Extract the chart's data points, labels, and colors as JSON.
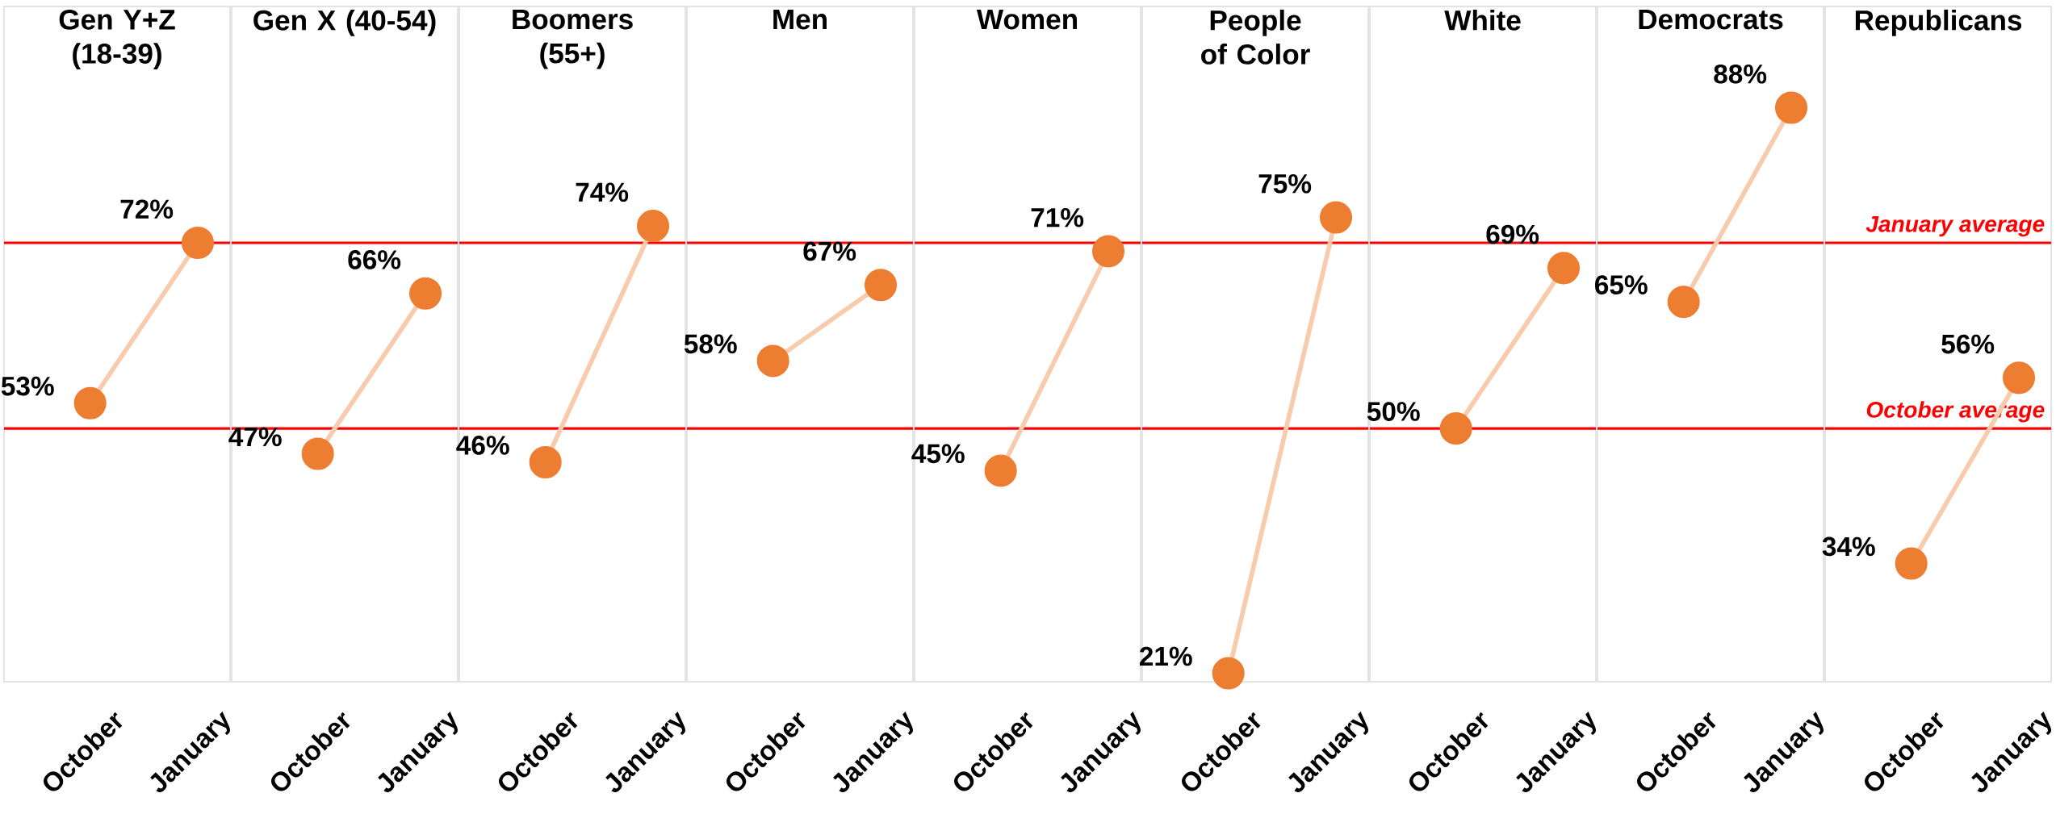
{
  "chart_data": [
    {
      "type": "line",
      "title": "Gen Y+Z (18-39)",
      "categories": [
        "October",
        "January"
      ],
      "values": [
        53,
        72
      ],
      "value_labels": [
        "53%",
        "72%"
      ],
      "color": "#f8cbad",
      "colors": [
        "#ed7d31",
        "#ed7d31"
      ],
      "marker": "circle",
      "ylim": [
        20,
        100
      ],
      "ref_lines": [
        {
          "axis": "y",
          "value": 72,
          "color": "#ff0000"
        },
        {
          "axis": "y",
          "value": 50,
          "color": "#ff0000"
        }
      ]
    },
    {
      "type": "line",
      "title": "Gen X (40-54)",
      "categories": [
        "October",
        "January"
      ],
      "values": [
        47,
        66
      ],
      "value_labels": [
        "47%",
        "66%"
      ],
      "color": "#f8cbad",
      "colors": [
        "#ed7d31",
        "#ed7d31"
      ],
      "marker": "circle",
      "ylim": [
        20,
        100
      ],
      "ref_lines": [
        {
          "axis": "y",
          "value": 72,
          "color": "#ff0000"
        },
        {
          "axis": "y",
          "value": 50,
          "color": "#ff0000"
        }
      ]
    },
    {
      "type": "line",
      "title": "Boomers (55+)",
      "categories": [
        "October",
        "January"
      ],
      "values": [
        46,
        74
      ],
      "value_labels": [
        "46%",
        "74%"
      ],
      "color": "#f8cbad",
      "colors": [
        "#ed7d31",
        "#ed7d31"
      ],
      "marker": "circle",
      "ylim": [
        20,
        100
      ],
      "ref_lines": [
        {
          "axis": "y",
          "value": 72,
          "color": "#ff0000"
        },
        {
          "axis": "y",
          "value": 50,
          "color": "#ff0000"
        }
      ]
    },
    {
      "type": "line",
      "title": "Men",
      "categories": [
        "October",
        "January"
      ],
      "values": [
        58,
        67
      ],
      "value_labels": [
        "58%",
        "67%"
      ],
      "color": "#f8cbad",
      "colors": [
        "#ed7d31",
        "#ed7d31"
      ],
      "marker": "circle",
      "ylim": [
        20,
        100
      ],
      "ref_lines": [
        {
          "axis": "y",
          "value": 72,
          "color": "#ff0000"
        },
        {
          "axis": "y",
          "value": 50,
          "color": "#ff0000"
        }
      ]
    },
    {
      "type": "line",
      "title": "Women",
      "categories": [
        "October",
        "January"
      ],
      "values": [
        45,
        71
      ],
      "value_labels": [
        "45%",
        "71%"
      ],
      "color": "#f8cbad",
      "colors": [
        "#ed7d31",
        "#ed7d31"
      ],
      "marker": "circle",
      "ylim": [
        20,
        100
      ],
      "ref_lines": [
        {
          "axis": "y",
          "value": 72,
          "color": "#ff0000"
        },
        {
          "axis": "y",
          "value": 50,
          "color": "#ff0000"
        }
      ]
    },
    {
      "type": "line",
      "title": "People of Color",
      "categories": [
        "October",
        "January"
      ],
      "values": [
        21,
        75
      ],
      "value_labels": [
        "21%",
        "75%"
      ],
      "color": "#f8cbad",
      "colors": [
        "#ed7d31",
        "#ed7d31"
      ],
      "marker": "circle",
      "ylim": [
        20,
        100
      ],
      "ref_lines": [
        {
          "axis": "y",
          "value": 72,
          "color": "#ff0000"
        },
        {
          "axis": "y",
          "value": 50,
          "color": "#ff0000"
        }
      ]
    },
    {
      "type": "line",
      "title": "White",
      "categories": [
        "October",
        "January"
      ],
      "values": [
        50,
        69
      ],
      "value_labels": [
        "50%",
        "69%"
      ],
      "color": "#f8cbad",
      "colors": [
        "#ed7d31",
        "#ed7d31"
      ],
      "marker": "circle",
      "ylim": [
        20,
        100
      ],
      "ref_lines": [
        {
          "axis": "y",
          "value": 72,
          "color": "#ff0000"
        },
        {
          "axis": "y",
          "value": 50,
          "color": "#ff0000"
        }
      ]
    },
    {
      "type": "line",
      "title": "Democrats",
      "categories": [
        "October",
        "January"
      ],
      "values": [
        65,
        88
      ],
      "value_labels": [
        "65%",
        "88%"
      ],
      "color": "#f8cbad",
      "colors": [
        "#ed7d31",
        "#ed7d31"
      ],
      "marker": "circle",
      "ylim": [
        20,
        100
      ],
      "ref_lines": [
        {
          "axis": "y",
          "value": 72,
          "color": "#ff0000"
        },
        {
          "axis": "y",
          "value": 50,
          "color": "#ff0000"
        }
      ]
    },
    {
      "type": "line",
      "title": "Republicans",
      "categories": [
        "October",
        "January"
      ],
      "values": [
        34,
        56
      ],
      "value_labels": [
        "34%",
        "56%"
      ],
      "color": "#f8cbad",
      "colors": [
        "#ed7d31",
        "#ed7d31"
      ],
      "marker": "circle",
      "ylim": [
        20,
        100
      ],
      "ref_lines": [
        {
          "axis": "y",
          "value": 72,
          "color": "#ff0000",
          "label": "January average"
        },
        {
          "axis": "y",
          "value": 50,
          "color": "#ff0000",
          "label": "October average"
        }
      ]
    }
  ]
}
